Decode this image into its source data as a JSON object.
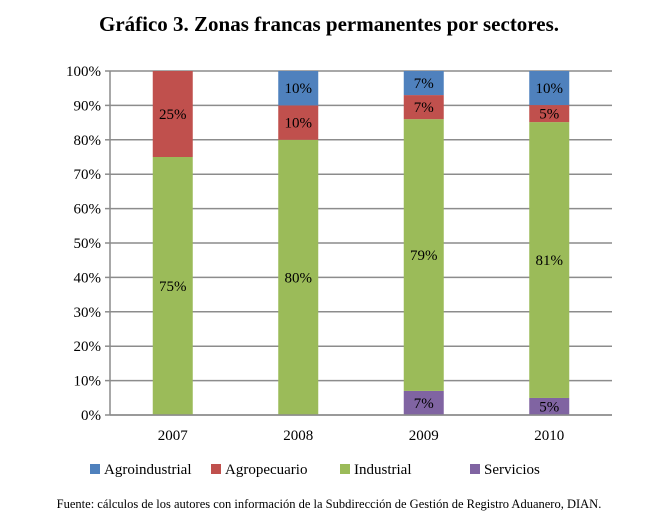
{
  "chart_data": {
    "type": "bar",
    "stacked": "percent",
    "title": "Gráfico 3. Zonas francas permanentes por sectores.",
    "source": "Fuente: cálculos de los autores con información de la Subdirección de Gestión de Registro Aduanero, DIAN.",
    "categories": [
      "2007",
      "2008",
      "2009",
      "2010"
    ],
    "ylim": [
      0,
      100
    ],
    "yticks": [
      "0%",
      "10%",
      "20%",
      "30%",
      "40%",
      "50%",
      "60%",
      "70%",
      "80%",
      "90%",
      "100%"
    ],
    "grid": true,
    "legend_position": "bottom",
    "stack_order": [
      "Servicios",
      "Industrial",
      "Agropecuario",
      "Agroindustrial"
    ],
    "series": [
      {
        "name": "Agroindustrial",
        "color": "#4f81bd",
        "values": [
          0,
          10,
          7,
          10
        ],
        "labels": [
          "",
          "10%",
          "7%",
          "10%"
        ]
      },
      {
        "name": "Agropecuario",
        "color": "#c0504d",
        "values": [
          25,
          10,
          7,
          5
        ],
        "labels": [
          "25%",
          "10%",
          "7%",
          "5%"
        ]
      },
      {
        "name": "Industrial",
        "color": "#9bbb59",
        "values": [
          75,
          80,
          79,
          81
        ],
        "labels": [
          "75%",
          "80%",
          "79%",
          "81%"
        ]
      },
      {
        "name": "Servicios",
        "color": "#8064a2",
        "values": [
          0,
          0,
          7,
          5
        ],
        "labels": [
          "",
          "",
          "7%",
          "5%"
        ]
      }
    ]
  }
}
